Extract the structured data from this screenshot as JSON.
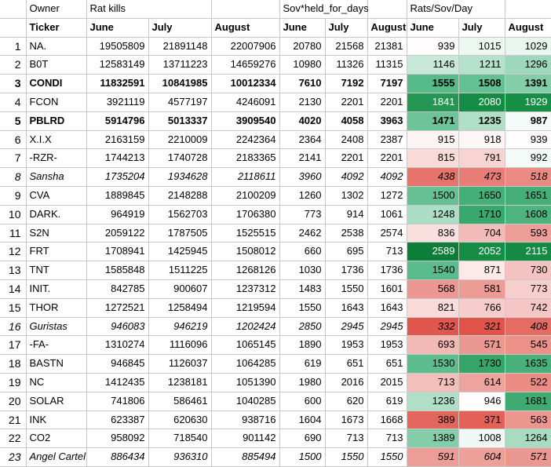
{
  "headers": {
    "owner": "Owner",
    "rat_kills": "Rat kills",
    "sov_held": "Sov*held_for_days",
    "rats_sov_day": "Rats/Sov/Day",
    "ticker": "Ticker",
    "months": [
      "June",
      "July",
      "August"
    ]
  },
  "conditional_format": {
    "stops": [
      [
        321,
        "#e0544a"
      ],
      [
        950,
        "#ffffff"
      ],
      [
        1550,
        "#57bb8a"
      ],
      [
        1900,
        "#189048"
      ],
      [
        2589,
        "#0d7d3a"
      ]
    ],
    "white_text_min": 1800
  },
  "grid_color": "#c9c9c9",
  "rows": [
    {
      "num": 1,
      "ticker": "NA.",
      "style": "normal",
      "kills": [
        19505809,
        21891148,
        22007906
      ],
      "sov": [
        20780,
        21568,
        21381
      ],
      "rats": [
        939,
        1015,
        1029
      ]
    },
    {
      "num": 2,
      "ticker": "B0T",
      "style": "normal",
      "kills": [
        12583149,
        13711223,
        14659276
      ],
      "sov": [
        10980,
        11326,
        11315
      ],
      "rats": [
        1146,
        1211,
        1296
      ]
    },
    {
      "num": 3,
      "ticker": "CONDI",
      "style": "bold",
      "kills": [
        11832591,
        10841985,
        10012334
      ],
      "sov": [
        7610,
        7192,
        7197
      ],
      "rats": [
        1555,
        1508,
        1391
      ]
    },
    {
      "num": 4,
      "ticker": "FCON",
      "style": "normal",
      "kills": [
        3921119,
        4577197,
        4246091
      ],
      "sov": [
        2130,
        2201,
        2201
      ],
      "rats": [
        1841,
        2080,
        1929
      ]
    },
    {
      "num": 5,
      "ticker": "PBLRD",
      "style": "bold",
      "kills": [
        5914796,
        5013337,
        3909540
      ],
      "sov": [
        4020,
        4058,
        3963
      ],
      "rats": [
        1471,
        1235,
        987
      ]
    },
    {
      "num": 6,
      "ticker": "X.I.X",
      "style": "normal",
      "kills": [
        2163159,
        2210009,
        2242364
      ],
      "sov": [
        2364,
        2408,
        2387
      ],
      "rats": [
        915,
        918,
        939
      ]
    },
    {
      "num": 7,
      "ticker": "-RZR-",
      "style": "normal",
      "kills": [
        1744213,
        1740728,
        2183365
      ],
      "sov": [
        2141,
        2201,
        2201
      ],
      "rats": [
        815,
        791,
        992
      ]
    },
    {
      "num": 8,
      "ticker": "Sansha",
      "style": "italic",
      "kills": [
        1735204,
        1934628,
        2118611
      ],
      "sov": [
        3960,
        4092,
        4092
      ],
      "rats": [
        438,
        473,
        518
      ]
    },
    {
      "num": 9,
      "ticker": "CVA",
      "style": "normal",
      "kills": [
        1889845,
        2148288,
        2100209
      ],
      "sov": [
        1260,
        1302,
        1272
      ],
      "rats": [
        1500,
        1650,
        1651
      ]
    },
    {
      "num": 10,
      "ticker": "DARK.",
      "style": "normal",
      "kills": [
        964919,
        1562703,
        1706380
      ],
      "sov": [
        773,
        914,
        1061
      ],
      "rats": [
        1248,
        1710,
        1608
      ]
    },
    {
      "num": 11,
      "ticker": "S2N",
      "style": "normal",
      "kills": [
        2059122,
        1787505,
        1525515
      ],
      "sov": [
        2462,
        2538,
        2574
      ],
      "rats": [
        836,
        704,
        593
      ]
    },
    {
      "num": 12,
      "ticker": "FRT",
      "style": "normal",
      "kills": [
        1708941,
        1425945,
        1508012
      ],
      "sov": [
        660,
        695,
        713
      ],
      "rats": [
        2589,
        2052,
        2115
      ]
    },
    {
      "num": 13,
      "ticker": "TNT",
      "style": "normal",
      "kills": [
        1585848,
        1511225,
        1268126
      ],
      "sov": [
        1030,
        1736,
        1736
      ],
      "rats": [
        1540,
        871,
        730
      ]
    },
    {
      "num": 14,
      "ticker": "INIT.",
      "style": "normal",
      "kills": [
        842785,
        900607,
        1237312
      ],
      "sov": [
        1483,
        1550,
        1601
      ],
      "rats": [
        568,
        581,
        773
      ]
    },
    {
      "num": 15,
      "ticker": "THOR",
      "style": "normal",
      "kills": [
        1272521,
        1258494,
        1219594
      ],
      "sov": [
        1550,
        1643,
        1643
      ],
      "rats": [
        821,
        766,
        742
      ]
    },
    {
      "num": 16,
      "ticker": "Guristas",
      "style": "italic",
      "kills": [
        946083,
        946219,
        1202424
      ],
      "sov": [
        2850,
        2945,
        2945
      ],
      "rats": [
        332,
        321,
        408
      ]
    },
    {
      "num": 17,
      "ticker": "-FA-",
      "style": "normal",
      "kills": [
        1310274,
        1116096,
        1065145
      ],
      "sov": [
        1890,
        1953,
        1953
      ],
      "rats": [
        693,
        571,
        545
      ]
    },
    {
      "num": 18,
      "ticker": "BASTN",
      "style": "normal",
      "kills": [
        946845,
        1126037,
        1064285
      ],
      "sov": [
        619,
        651,
        651
      ],
      "rats": [
        1530,
        1730,
        1635
      ]
    },
    {
      "num": 19,
      "ticker": "NC",
      "style": "normal",
      "kills": [
        1412435,
        1238181,
        1051390
      ],
      "sov": [
        1980,
        2016,
        2015
      ],
      "rats": [
        713,
        614,
        522
      ]
    },
    {
      "num": 20,
      "ticker": "SOLAR",
      "style": "normal",
      "kills": [
        741806,
        586461,
        1040285
      ],
      "sov": [
        600,
        620,
        619
      ],
      "rats": [
        1236,
        946,
        1681
      ]
    },
    {
      "num": 21,
      "ticker": "INK",
      "style": "normal",
      "kills": [
        623387,
        620630,
        938716
      ],
      "sov": [
        1604,
        1673,
        1668
      ],
      "rats": [
        389,
        371,
        563
      ]
    },
    {
      "num": 22,
      "ticker": "CO2",
      "style": "normal",
      "kills": [
        958092,
        718540,
        901142
      ],
      "sov": [
        690,
        713,
        713
      ],
      "rats": [
        1389,
        1008,
        1264
      ]
    },
    {
      "num": 23,
      "ticker": "Angel Cartel",
      "style": "italic",
      "kills": [
        886434,
        936310,
        885494
      ],
      "sov": [
        1500,
        1550,
        1550
      ],
      "rats": [
        591,
        604,
        571
      ]
    }
  ]
}
